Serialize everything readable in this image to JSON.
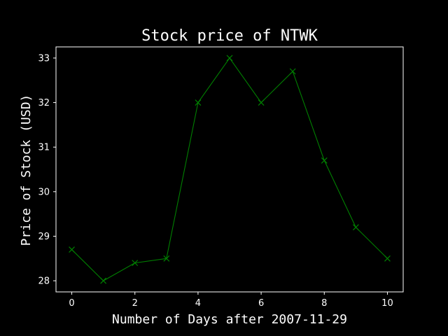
{
  "chart_data": {
    "type": "line",
    "title": "Stock price of NTWK",
    "xlabel": "Number of Days after 2007-11-29",
    "ylabel": "Price of Stock (USD)",
    "x": [
      0,
      1,
      2,
      3,
      4,
      5,
      6,
      7,
      8,
      9,
      10
    ],
    "series": [
      {
        "values": [
          28.7,
          28.0,
          28.4,
          28.5,
          32.0,
          33.0,
          32.0,
          32.7,
          30.7,
          29.2,
          28.5
        ],
        "color": "#008000",
        "marker": "x"
      }
    ],
    "xlim": [
      -0.5,
      10.5
    ],
    "ylim": [
      27.75,
      33.25
    ],
    "xticks": [
      "0",
      "2",
      "4",
      "6",
      "8",
      "10"
    ],
    "yticks": [
      "28",
      "29",
      "30",
      "31",
      "32",
      "33"
    ],
    "grid": false,
    "legend": "none",
    "background": "#000000",
    "foreground": "#ffffff"
  }
}
